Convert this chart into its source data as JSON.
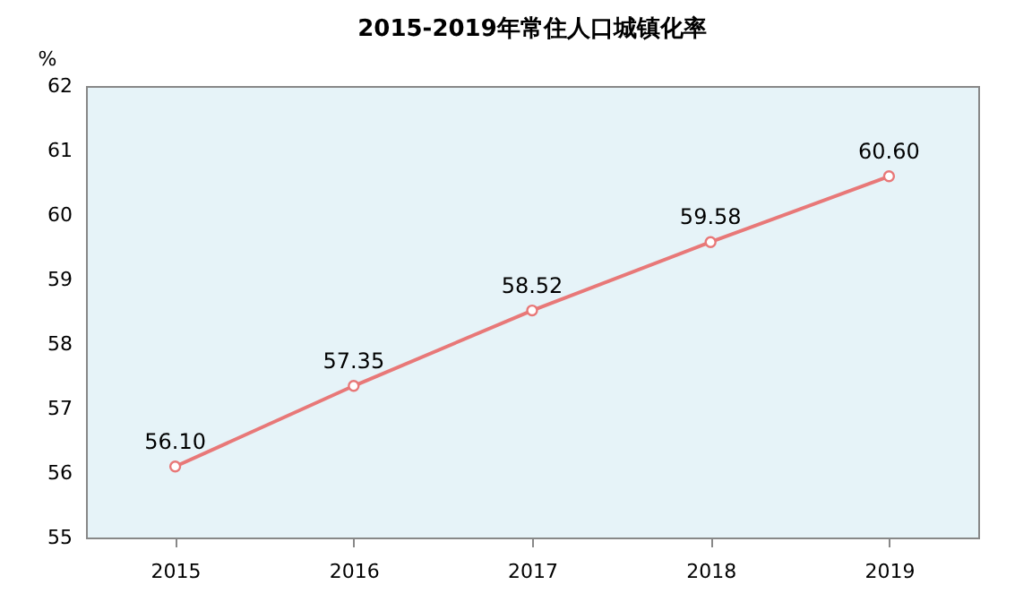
{
  "chart_data": {
    "type": "line",
    "title": "2015-2019年常住人口城镇化率",
    "ylabel": "%",
    "categories": [
      "2015",
      "2016",
      "2017",
      "2018",
      "2019"
    ],
    "series": [
      {
        "color": "#e87878",
        "values": [
          56.1,
          57.35,
          58.52,
          59.58,
          60.6
        ],
        "value_labels": [
          "56.10",
          "57.35",
          "58.52",
          "59.58",
          "60.60"
        ]
      }
    ],
    "ylim": [
      55,
      62
    ],
    "yticks": [
      55,
      56,
      57,
      58,
      59,
      60,
      61,
      62
    ],
    "marker": "circle",
    "line_style": "solid",
    "grid": false
  }
}
